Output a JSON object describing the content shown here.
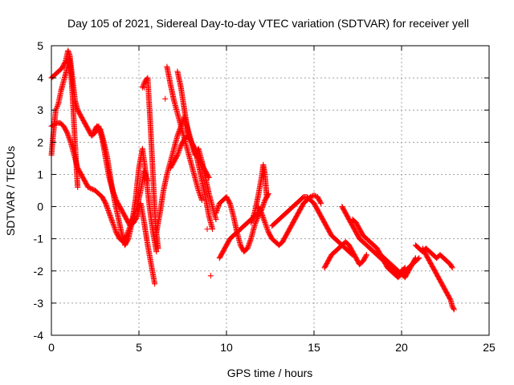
{
  "chart_data": {
    "type": "scatter",
    "title": "Day 105 of 2021, Sidereal Day-to-day VTEC variation (SDTVAR) for receiver yell",
    "xlabel": "GPS time / hours",
    "ylabel": "SDTVAR / TECUs",
    "xlim": [
      0,
      25
    ],
    "ylim": [
      -4,
      5
    ],
    "xticks": [
      0,
      5,
      10,
      15,
      20,
      25
    ],
    "yticks": [
      -4,
      -3,
      -2,
      -1,
      0,
      1,
      2,
      3,
      4,
      5
    ],
    "grid": true,
    "marker": "+",
    "colors": {
      "series": "#ff0000",
      "grid": "#a0a0a0",
      "axis": "#000000"
    },
    "series": [
      {
        "name": "SDTVAR",
        "description": "multiple satellite tracks (approximate digitized traces)",
        "tracks": [
          {
            "x": [
              0.0,
              0.2,
              0.4,
              0.6,
              0.8,
              0.95,
              1.05,
              1.2,
              1.35,
              1.5,
              1.7,
              1.9,
              2.1,
              2.3,
              2.5,
              2.7,
              2.9,
              3.1,
              3.3,
              3.5,
              3.7,
              3.9,
              4.1,
              4.3,
              4.5,
              4.7,
              4.9,
              5.1,
              5.3,
              5.5,
              5.7,
              5.9
            ],
            "y": [
              4.0,
              4.1,
              4.2,
              4.3,
              4.5,
              4.85,
              4.7,
              4.0,
              3.3,
              3.0,
              2.8,
              2.6,
              2.4,
              2.2,
              2.3,
              2.5,
              2.1,
              1.5,
              0.9,
              0.5,
              0.2,
              0.0,
              -0.2,
              -0.4,
              -0.6,
              -0.5,
              -0.3,
              0.1,
              -0.5,
              -1.2,
              -1.8,
              -2.4
            ]
          },
          {
            "x": [
              0.0,
              0.15,
              0.3,
              0.5,
              0.7,
              0.9,
              1.1,
              1.3,
              1.5,
              1.7,
              1.9,
              2.1,
              2.3,
              2.5,
              2.7,
              2.9,
              3.1,
              3.3,
              3.5,
              3.7,
              3.9,
              4.1,
              4.3,
              4.5,
              4.7,
              4.9,
              5.1,
              5.3,
              5.5
            ],
            "y": [
              2.5,
              2.55,
              2.6,
              2.6,
              2.5,
              2.3,
              2.0,
              1.6,
              1.2,
              1.0,
              0.8,
              0.6,
              0.55,
              0.5,
              0.4,
              0.3,
              0.1,
              -0.2,
              -0.5,
              -0.8,
              -1.0,
              -1.1,
              -0.9,
              -0.6,
              -0.3,
              0.0,
              0.5,
              1.1,
              0.8
            ]
          },
          {
            "x": [
              0.0,
              0.1,
              0.25,
              0.4,
              0.55,
              0.7,
              0.85,
              1.0,
              1.1,
              1.2,
              1.3,
              1.4,
              1.5
            ],
            "y": [
              1.6,
              2.2,
              3.0,
              3.2,
              3.6,
              3.9,
              4.2,
              4.6,
              4.3,
              3.5,
              2.5,
              1.5,
              0.6
            ]
          },
          {
            "x": [
              2.4,
              2.6,
              2.8,
              3.0,
              3.2,
              3.4,
              3.6,
              3.8,
              4.0,
              4.2,
              4.4,
              4.6,
              4.8,
              5.0,
              5.2,
              5.4,
              5.6,
              5.8,
              6.0
            ],
            "y": [
              2.3,
              2.5,
              2.4,
              2.0,
              1.5,
              0.8,
              0.2,
              -0.3,
              -0.8,
              -1.2,
              -1.0,
              -0.5,
              0.2,
              1.2,
              1.8,
              1.0,
              0.0,
              -0.8,
              -1.4
            ]
          },
          {
            "x": [
              5.2,
              5.35,
              5.5,
              5.65,
              5.8,
              5.95,
              6.1
            ],
            "y": [
              3.7,
              3.9,
              4.0,
              2.6,
              1.0,
              -0.6,
              -1.3
            ]
          },
          {
            "x": [
              6.0,
              6.2,
              6.4,
              6.6,
              6.8,
              7.0,
              7.2,
              7.4,
              7.6,
              7.8,
              8.0,
              8.2,
              8.4,
              8.6,
              8.8,
              9.0,
              9.2,
              9.4
            ],
            "y": [
              -0.8,
              -0.2,
              0.5,
              1.0,
              1.4,
              1.8,
              2.2,
              2.5,
              2.8,
              2.4,
              2.0,
              1.6,
              1.8,
              1.4,
              0.9,
              0.4,
              0.0,
              -0.4
            ]
          },
          {
            "x": [
              6.6,
              6.8,
              7.0,
              7.2,
              7.4,
              7.6,
              7.8,
              8.0,
              8.2,
              8.4,
              8.6
            ],
            "y": [
              4.35,
              3.8,
              3.3,
              2.9,
              2.5,
              2.1,
              1.7,
              1.3,
              0.9,
              0.5,
              0.2
            ]
          },
          {
            "x": [
              7.2,
              7.4,
              7.6,
              7.8,
              8.0,
              8.2,
              8.4,
              8.6,
              8.8,
              9.0,
              9.2
            ],
            "y": [
              4.2,
              3.7,
              3.0,
              2.3,
              2.0,
              1.8,
              1.3,
              0.8,
              0.3,
              -0.3,
              -0.7
            ]
          },
          {
            "x": [
              6.8,
              7.0,
              7.2,
              7.4,
              7.6,
              7.8,
              8.0,
              8.2,
              8.4,
              8.6,
              8.8,
              9.0
            ],
            "y": [
              1.2,
              1.4,
              1.6,
              1.9,
              2.1,
              2.2,
              2.0,
              1.7,
              1.5,
              1.3,
              1.1,
              0.9
            ]
          },
          {
            "x": [
              9.4,
              9.6,
              9.8,
              10.0,
              10.2,
              10.4,
              10.6,
              10.8,
              11.0,
              11.2,
              11.4,
              11.6,
              11.8,
              12.0,
              12.2,
              12.4
            ],
            "y": [
              -0.2,
              0.1,
              0.2,
              0.3,
              0.1,
              -0.3,
              -0.8,
              -1.2,
              -1.4,
              -1.3,
              -1.0,
              -0.6,
              -0.3,
              -0.1,
              0.2,
              0.4
            ]
          },
          {
            "x": [
              9.6,
              9.8,
              10.0,
              10.2,
              10.4,
              10.6,
              10.8,
              11.0,
              11.2,
              11.4,
              11.6,
              11.8,
              12.0
            ],
            "y": [
              -1.6,
              -1.4,
              -1.2,
              -1.0,
              -0.9,
              -0.8,
              -0.7,
              -0.6,
              -0.5,
              -0.4,
              -0.3,
              -0.2,
              -0.1
            ]
          },
          {
            "x": [
              11.4,
              11.6,
              11.8,
              12.0,
              12.1,
              12.2,
              12.3
            ],
            "y": [
              -0.5,
              -0.2,
              0.3,
              0.9,
              1.3,
              1.0,
              0.3
            ]
          },
          {
            "x": [
              11.8,
              12.0,
              12.2,
              12.4,
              12.6,
              12.8,
              13.0,
              13.2,
              13.4,
              13.6,
              13.8,
              14.0,
              14.2,
              14.4,
              14.6,
              14.8,
              15.0,
              15.2,
              15.4
            ],
            "y": [
              0.0,
              -0.2,
              -0.5,
              -0.8,
              -1.0,
              -1.1,
              -1.2,
              -1.1,
              -0.9,
              -0.7,
              -0.5,
              -0.3,
              -0.1,
              0.1,
              0.2,
              0.3,
              0.35,
              0.3,
              0.1
            ]
          },
          {
            "x": [
              12.6,
              12.8,
              13.0,
              13.2,
              13.4,
              13.6,
              13.8,
              14.0,
              14.2,
              14.4,
              14.6,
              14.8,
              15.0,
              15.2,
              15.4,
              15.6,
              15.8,
              16.0,
              16.2,
              16.4,
              16.6,
              16.8,
              17.0,
              17.2
            ],
            "y": [
              -0.6,
              -0.5,
              -0.4,
              -0.3,
              -0.2,
              -0.1,
              0.0,
              0.1,
              0.2,
              0.3,
              0.3,
              0.2,
              0.1,
              -0.1,
              -0.3,
              -0.5,
              -0.7,
              -0.9,
              -1.0,
              -1.1,
              -1.2,
              -1.3,
              -1.4,
              -1.5
            ]
          },
          {
            "x": [
              15.6,
              15.8,
              16.0,
              16.2,
              16.4,
              16.6,
              16.8,
              17.0,
              17.2,
              17.4,
              17.6,
              17.8,
              18.0
            ],
            "y": [
              -1.9,
              -1.7,
              -1.5,
              -1.4,
              -1.3,
              -1.2,
              -1.1,
              -1.2,
              -1.4,
              -1.6,
              -1.8,
              -1.7,
              -1.5
            ]
          },
          {
            "x": [
              16.6,
              16.8,
              17.0,
              17.2,
              17.4,
              17.6,
              17.8,
              18.0,
              18.2,
              18.4,
              18.6,
              18.8,
              19.0,
              19.2,
              19.4,
              19.6,
              19.8,
              20.0,
              20.2
            ],
            "y": [
              0.0,
              -0.2,
              -0.4,
              -0.6,
              -0.8,
              -1.0,
              -1.1,
              -1.2,
              -1.3,
              -1.4,
              -1.5,
              -1.6,
              -1.7,
              -1.8,
              -1.9,
              -2.0,
              -2.1,
              -2.0,
              -1.9
            ]
          },
          {
            "x": [
              17.2,
              17.4,
              17.6,
              17.8,
              18.0,
              18.2,
              18.4,
              18.6,
              18.8,
              19.0,
              19.2,
              19.4,
              19.6,
              19.8,
              20.0,
              20.2,
              20.4,
              20.6,
              20.8
            ],
            "y": [
              -0.4,
              -0.5,
              -0.7,
              -0.9,
              -1.0,
              -1.1,
              -1.2,
              -1.3,
              -1.5,
              -1.6,
              -1.7,
              -1.8,
              -1.9,
              -2.0,
              -2.1,
              -2.2,
              -2.0,
              -1.8,
              -1.6
            ]
          },
          {
            "x": [
              18.6,
              18.8,
              19.0,
              19.2,
              19.4,
              19.6,
              19.8,
              20.0,
              20.2,
              20.4,
              20.6,
              20.8,
              21.0
            ],
            "y": [
              -1.4,
              -1.5,
              -1.7,
              -1.9,
              -2.0,
              -2.1,
              -2.2,
              -2.1,
              -2.0,
              -1.9,
              -1.8,
              -1.7,
              -1.6
            ]
          },
          {
            "x": [
              20.8,
              21.0,
              21.2,
              21.4,
              21.6,
              21.8,
              22.0,
              22.2,
              22.4,
              22.6,
              22.8,
              22.9
            ],
            "y": [
              -1.2,
              -1.3,
              -1.4,
              -1.3,
              -1.4,
              -1.5,
              -1.6,
              -1.5,
              -1.6,
              -1.7,
              -1.8,
              -1.9
            ]
          },
          {
            "x": [
              21.2,
              21.4,
              21.6,
              21.8,
              22.0,
              22.2,
              22.4,
              22.6,
              22.8,
              22.9,
              23.0
            ],
            "y": [
              -1.3,
              -1.5,
              -1.7,
              -1.9,
              -2.1,
              -2.3,
              -2.5,
              -2.7,
              -2.9,
              -3.1,
              -3.2
            ]
          }
        ],
        "isolated_points": [
          {
            "x": 9.1,
            "y": -2.15
          },
          {
            "x": 8.9,
            "y": -0.7
          },
          {
            "x": 6.5,
            "y": 3.35
          },
          {
            "x": 5.3,
            "y": 3.7
          }
        ]
      }
    ]
  }
}
